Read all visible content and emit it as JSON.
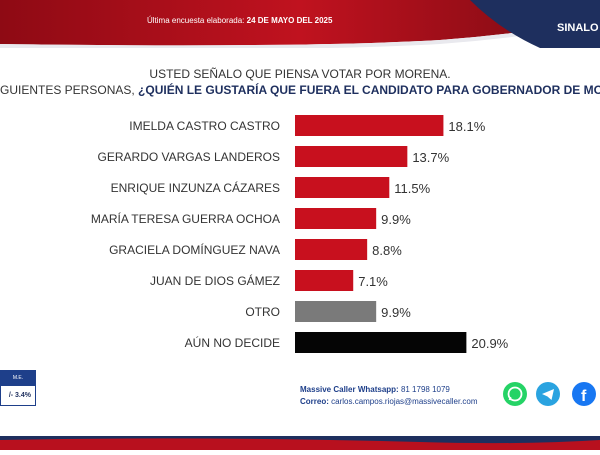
{
  "header": {
    "survey_label": "Última encuesta elaborada:",
    "survey_date": "24 DE MAYO DEL 2025",
    "region": "SINALO"
  },
  "question": {
    "line1": "USTED SEÑALO QUE PIENSA VOTAR POR MORENA.",
    "line2_prefix": "GUIENTES PERSONAS, ",
    "line2_bold": "¿QUIÉN LE GUSTARÍA QUE FUERA EL CANDIDATO PARA GOBERNADOR DE MO"
  },
  "chart_data": {
    "type": "bar",
    "orientation": "horizontal",
    "categories": [
      "IMELDA CASTRO CASTRO",
      "GERARDO VARGAS LANDEROS",
      "ENRIQUE INZUNZA CÁZARES",
      "MARÍA TERESA GUERRA OCHOA",
      "GRACIELA DOMÍNGUEZ NAVA",
      "JUAN DE DIOS GÁMEZ",
      "OTRO",
      "AÚN NO DECIDE"
    ],
    "values": [
      18.1,
      13.7,
      11.5,
      9.9,
      8.8,
      7.1,
      9.9,
      20.9
    ],
    "value_labels": [
      "18.1%",
      "13.7%",
      "11.5%",
      "9.9%",
      "8.8%",
      "7.1%",
      "9.9%",
      "20.9%"
    ],
    "colors": [
      "#c8101e",
      "#c8101e",
      "#c8101e",
      "#c8101e",
      "#c8101e",
      "#c8101e",
      "#7a7a7a",
      "#050505"
    ],
    "grid": false
  },
  "margin_error": {
    "label": "M.E.",
    "value": "/- 3.4%"
  },
  "contact": {
    "whatsapp_label": "Massive Caller Whatsapp:",
    "whatsapp_number": "81 1798 1079",
    "email_label": "Correo:",
    "email": "carlos.campos.riojas@massivecaller.com"
  },
  "icons": [
    "whatsapp-icon",
    "telegram-icon",
    "facebook-icon"
  ],
  "colors": {
    "brand_red": "#b8101e",
    "brand_navy": "#1e2f5e"
  }
}
